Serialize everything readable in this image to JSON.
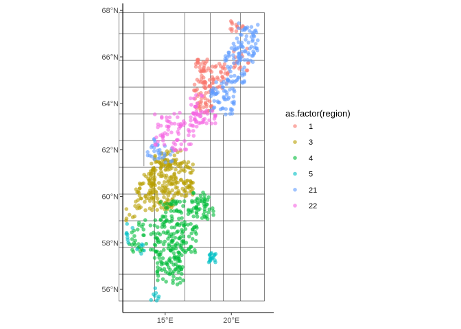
{
  "chart_data": {
    "type": "scatter",
    "title": "",
    "xlabel": "",
    "ylabel": "",
    "x_ticks": [
      {
        "value": 15,
        "label": "15°E"
      },
      {
        "value": 20,
        "label": "20°E"
      }
    ],
    "y_ticks": [
      {
        "value": 56,
        "label": "56°N"
      },
      {
        "value": 58,
        "label": "58°N"
      },
      {
        "value": 60,
        "label": "60°N"
      },
      {
        "value": 62,
        "label": "62°N"
      },
      {
        "value": 64,
        "label": "64°N"
      },
      {
        "value": 66,
        "label": "66°N"
      },
      {
        "value": 68,
        "label": "68°N"
      }
    ],
    "xlim": [
      11.8,
      23.2
    ],
    "ylim": [
      55.0,
      68.3
    ],
    "grid": {
      "lon_bounds": [
        11.5,
        22.5
      ],
      "lat_bounds": [
        55.5,
        67.9
      ],
      "lon_lines": [
        13.4,
        14.2,
        16.5,
        18.4,
        19.4,
        20.7
      ],
      "lat_lines": [
        56.65,
        57.8,
        58.95,
        60.1,
        61.25,
        62.4,
        63.55,
        64.7,
        65.85,
        67.0
      ],
      "lon_line_lat_ranges": [
        [
          61.3,
          67.9
        ],
        [
          55.5,
          61.3
        ],
        [
          55.5,
          67.9
        ],
        [
          55.5,
          67.9
        ],
        [
          55.5,
          63.5
        ],
        [
          55.5,
          67.9
        ]
      ]
    },
    "legend": {
      "title": "as.factor(region)",
      "placement": "right",
      "entries": [
        {
          "label": "1",
          "color": "#F8766D"
        },
        {
          "label": "3",
          "color": "#B79F00"
        },
        {
          "label": "4",
          "color": "#00BA38"
        },
        {
          "label": "5",
          "color": "#00BFC4"
        },
        {
          "label": "21",
          "color": "#619CFF"
        },
        {
          "label": "22",
          "color": "#F564E3"
        }
      ]
    },
    "point_opacity": 0.6,
    "series": [
      {
        "name": "1",
        "color": "#F8766D",
        "clusters": [
          {
            "lon": [
              17.1,
              18.6
            ],
            "lat": [
              63.6,
              65.6
            ],
            "n": 75
          },
          {
            "lon": [
              17.3,
              18.4
            ],
            "lat": [
              65.4,
              65.9
            ],
            "n": 16
          },
          {
            "lon": [
              18.4,
              19.6
            ],
            "lat": [
              64.5,
              65.8
            ],
            "n": 22
          },
          {
            "lon": [
              19.3,
              19.8
            ],
            "lat": [
              64.6,
              65.6
            ],
            "n": 8
          },
          {
            "lon": [
              19.8,
              21.3
            ],
            "lat": [
              65.4,
              66.4
            ],
            "n": 16
          },
          {
            "lon": [
              19.9,
              21.0
            ],
            "lat": [
              67.1,
              67.6
            ],
            "n": 13
          }
        ]
      },
      {
        "name": "3",
        "color": "#B79F00",
        "clusters": [
          {
            "lon": [
              13.9,
              17.1
            ],
            "lat": [
              60.0,
              61.5
            ],
            "n": 150
          },
          {
            "lon": [
              14.2,
              16.3
            ],
            "lat": [
              61.3,
              62.0
            ],
            "n": 40
          },
          {
            "lon": [
              12.6,
              14.2
            ],
            "lat": [
              59.4,
              60.6
            ],
            "n": 40
          },
          {
            "lon": [
              13.0,
              14.2
            ],
            "lat": [
              60.4,
              61.0
            ],
            "n": 15
          },
          {
            "lon": [
              14.1,
              15.6
            ],
            "lat": [
              59.4,
              60.0
            ],
            "n": 30
          },
          {
            "lon": [
              11.9,
              12.7
            ],
            "lat": [
              58.9,
              59.5
            ],
            "n": 6
          }
        ]
      },
      {
        "name": "4",
        "color": "#00BA38",
        "clusters": [
          {
            "lon": [
              14.6,
              17.4
            ],
            "lat": [
              58.4,
              59.8
            ],
            "n": 80
          },
          {
            "lon": [
              17.0,
              18.7
            ],
            "lat": [
              59.0,
              60.2
            ],
            "n": 45
          },
          {
            "lon": [
              14.2,
              16.4
            ],
            "lat": [
              56.6,
              58.5
            ],
            "n": 110
          },
          {
            "lon": [
              15.3,
              16.4
            ],
            "lat": [
              56.2,
              56.9
            ],
            "n": 15
          },
          {
            "lon": [
              12.2,
              14.5
            ],
            "lat": [
              57.6,
              59.0
            ],
            "n": 40
          },
          {
            "lon": [
              16.5,
              17.4
            ],
            "lat": [
              57.5,
              58.5
            ],
            "n": 15
          },
          {
            "lon": [
              14.3,
              15.1
            ],
            "lat": [
              56.3,
              56.8
            ],
            "n": 6
          }
        ]
      },
      {
        "name": "5",
        "color": "#00BFC4",
        "clusters": [
          {
            "lon": [
              18.3,
              18.9
            ],
            "lat": [
              57.1,
              57.7
            ],
            "n": 18
          },
          {
            "lon": [
              11.9,
              12.6
            ],
            "lat": [
              58.0,
              58.9
            ],
            "n": 8
          },
          {
            "lon": [
              12.8,
              13.5
            ],
            "lat": [
              57.5,
              58.2
            ],
            "n": 6
          },
          {
            "lon": [
              13.5,
              14.4
            ],
            "lat": [
              55.5,
              56.2
            ],
            "n": 6
          },
          {
            "lon": [
              14.3,
              14.6
            ],
            "lat": [
              55.6,
              55.8
            ],
            "n": 2
          }
        ]
      },
      {
        "name": "21",
        "color": "#619CFF",
        "clusters": [
          {
            "lon": [
              18.4,
              20.3
            ],
            "lat": [
              63.5,
              65.0
            ],
            "n": 60
          },
          {
            "lon": [
              19.5,
              21.0
            ],
            "lat": [
              64.8,
              66.2
            ],
            "n": 45
          },
          {
            "lon": [
              20.5,
              22.0
            ],
            "lat": [
              65.7,
              67.6
            ],
            "n": 60
          },
          {
            "lon": [
              13.6,
              15.6
            ],
            "lat": [
              61.4,
              62.3
            ],
            "n": 25
          },
          {
            "lon": [
              13.9,
              14.5
            ],
            "lat": [
              62.1,
              62.6
            ],
            "n": 6
          },
          {
            "lon": [
              20.0,
              21.0
            ],
            "lat": [
              66.3,
              66.8
            ],
            "n": 8
          }
        ]
      },
      {
        "name": "22",
        "color": "#F564E3",
        "clusters": [
          {
            "lon": [
              14.2,
              17.5
            ],
            "lat": [
              62.2,
              63.6
            ],
            "n": 70
          },
          {
            "lon": [
              16.9,
              18.8
            ],
            "lat": [
              63.1,
              63.7
            ],
            "n": 30
          },
          {
            "lon": [
              16.9,
              17.9
            ],
            "lat": [
              63.8,
              64.4
            ],
            "n": 10
          },
          {
            "lon": [
              15.4,
              16.6
            ],
            "lat": [
              61.9,
              62.3
            ],
            "n": 8
          }
        ]
      }
    ]
  }
}
